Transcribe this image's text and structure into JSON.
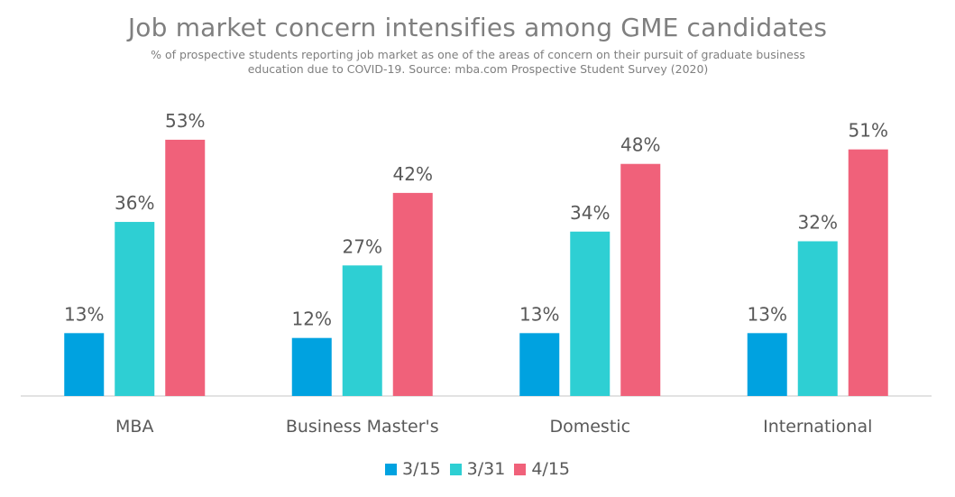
{
  "chart_data": {
    "type": "bar",
    "title": "Job market concern intensifies among GME candidates",
    "subtitle_line1": "% of prospective students reporting job market as one of the areas of concern on their pursuit of graduate business",
    "subtitle_line2": "education due to COVID-19. Source: mba.com Prospective Student Survey (2020)",
    "categories": [
      "MBA",
      "Business Master's",
      "Domestic",
      "International"
    ],
    "series": [
      {
        "name": "3/15",
        "color": "#00a2e0",
        "values": [
          13,
          12,
          13,
          13
        ]
      },
      {
        "name": "3/31",
        "color": "#2ecfd3",
        "values": [
          36,
          27,
          34,
          32
        ]
      },
      {
        "name": "4/15",
        "color": "#f0617a",
        "values": [
          53,
          42,
          48,
          51
        ]
      }
    ],
    "value_suffix": "%",
    "ylim": [
      0,
      100
    ],
    "grid": false,
    "legend_position": "bottom"
  }
}
